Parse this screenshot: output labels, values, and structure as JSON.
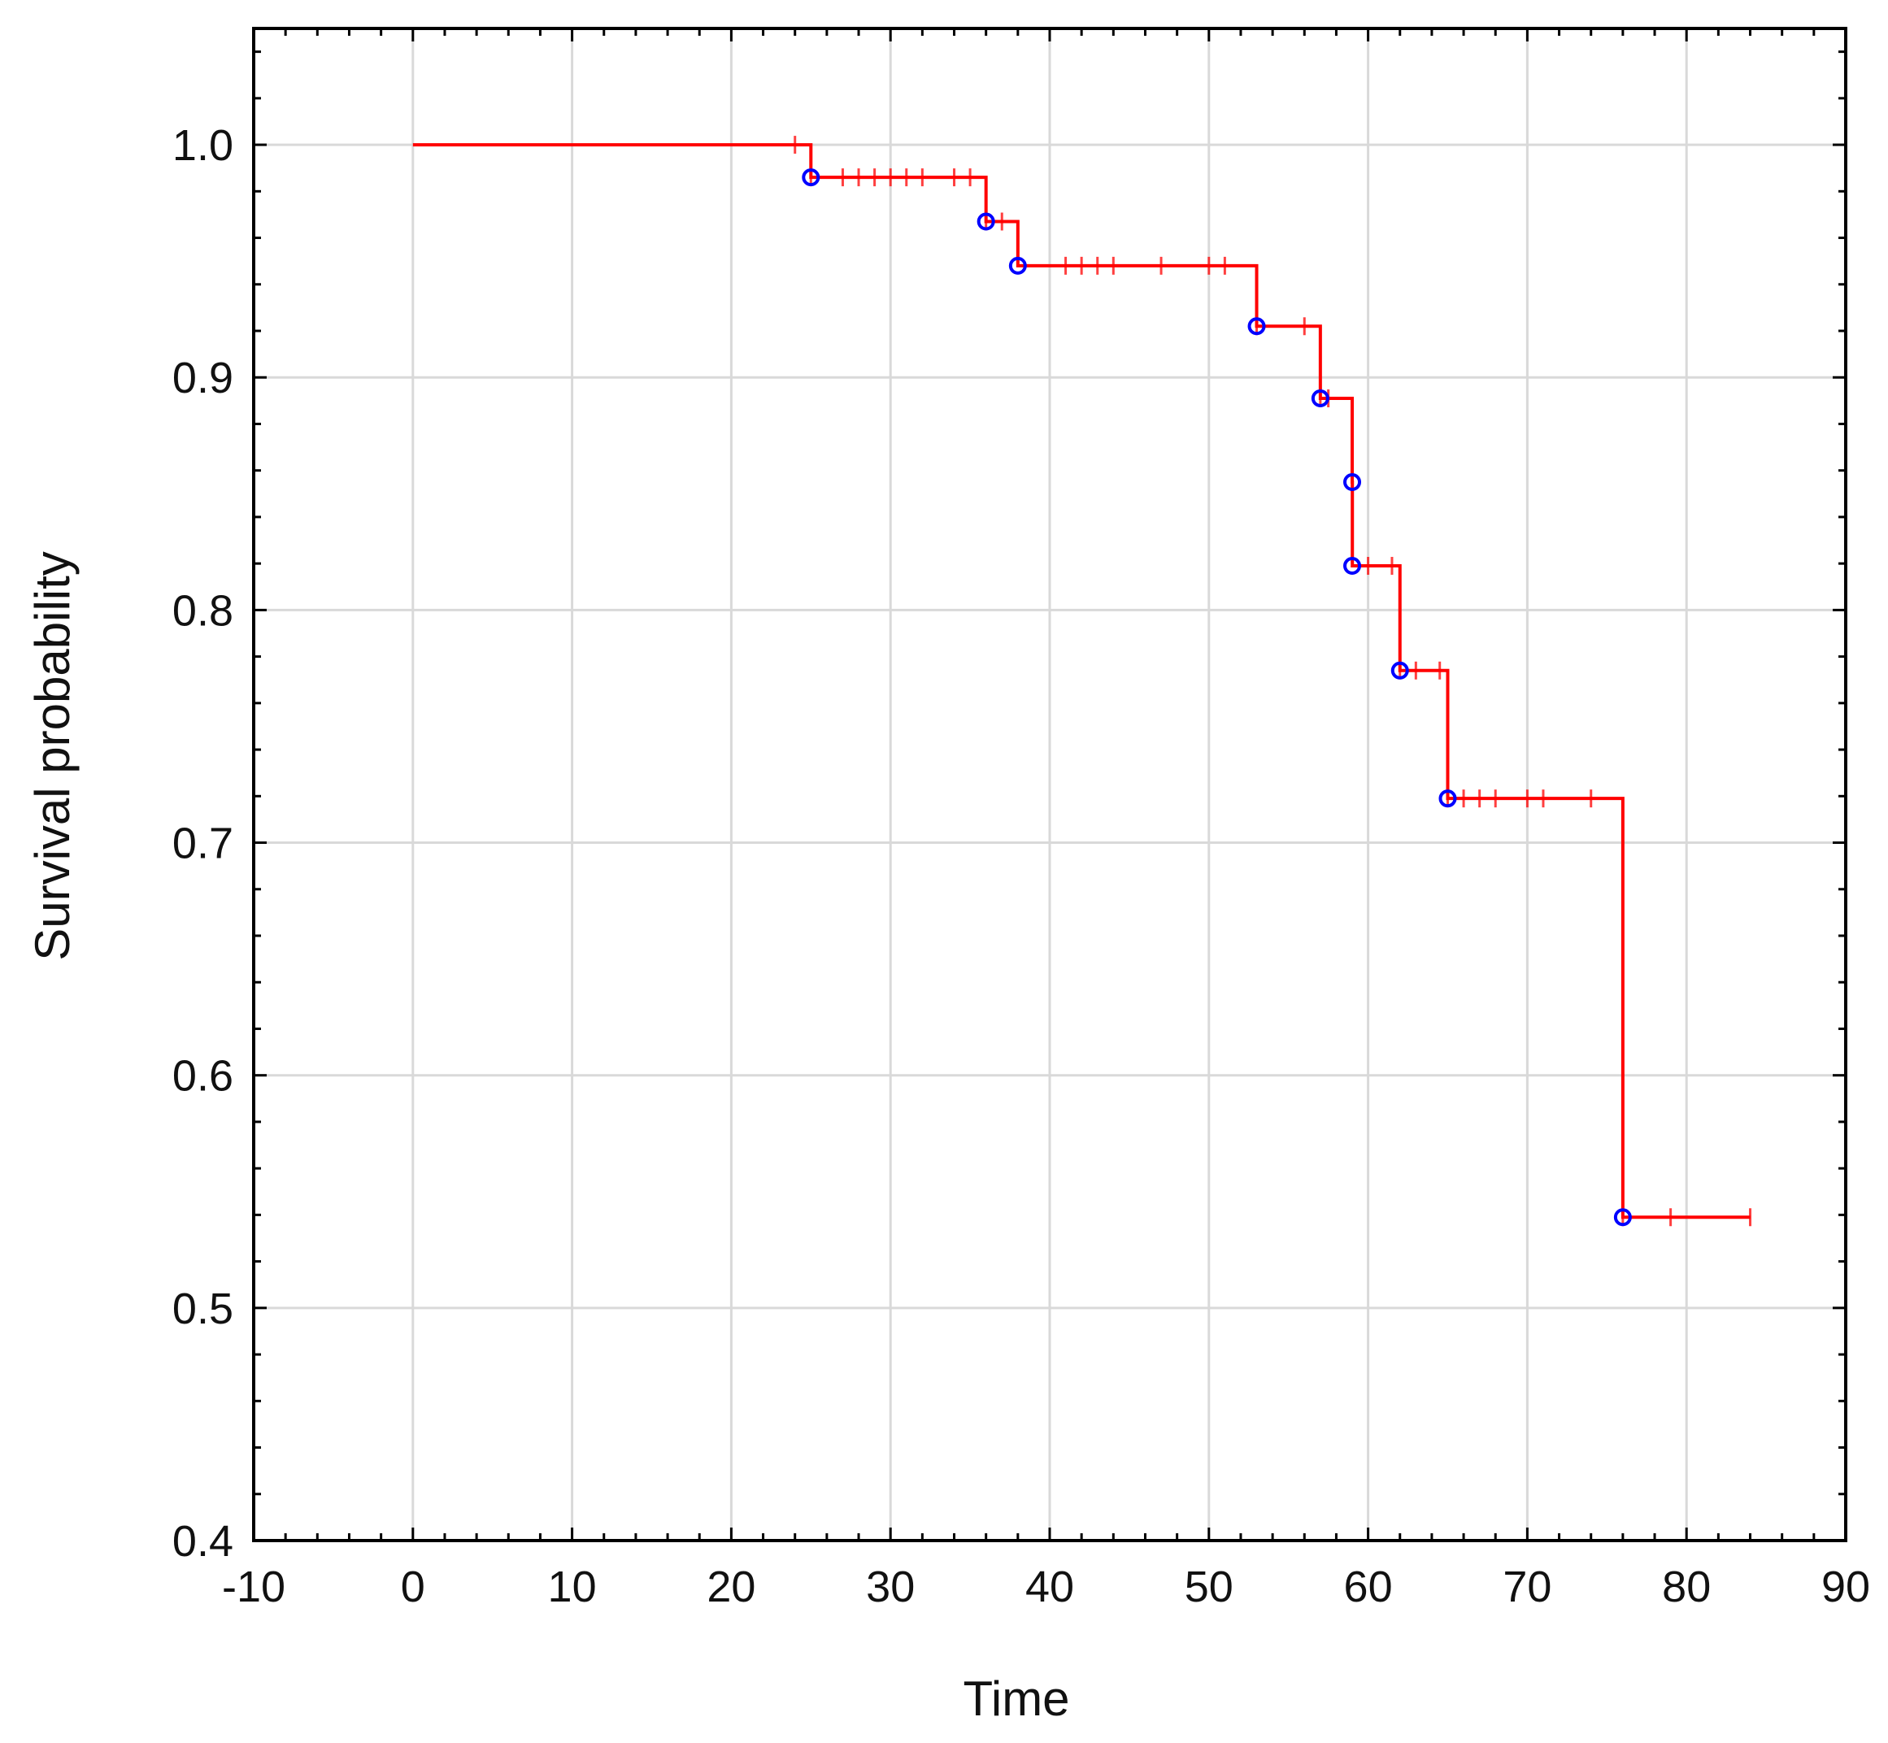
{
  "chart_data": {
    "type": "line",
    "xlabel": "Time",
    "ylabel": "Survival probability",
    "xlim": [
      -10,
      90
    ],
    "ylim": [
      0.4,
      1.05
    ],
    "xticks": [
      -10,
      0,
      10,
      20,
      30,
      40,
      50,
      60,
      70,
      80,
      90
    ],
    "xtick_labels": [
      "-10",
      "0",
      "10",
      "20",
      "30",
      "40",
      "50",
      "60",
      "70",
      "80",
      "90"
    ],
    "yticks": [
      0.4,
      0.5,
      0.6,
      0.7,
      0.8,
      0.9,
      1.0
    ],
    "ytick_labels": [
      "0.4",
      "0.5",
      "0.6",
      "0.7",
      "0.8",
      "0.9",
      "1.0"
    ],
    "grid": true,
    "colors": {
      "curve": "#ff0000",
      "event_marker": "#0000ff",
      "grid": "#d9d9d9",
      "axes": "#000000"
    },
    "series": [
      {
        "steps": [
          {
            "x": 0,
            "y": 1.0
          },
          {
            "x": 25,
            "y": 0.986
          },
          {
            "x": 36,
            "y": 0.967
          },
          {
            "x": 38,
            "y": 0.948
          },
          {
            "x": 53,
            "y": 0.922
          },
          {
            "x": 57,
            "y": 0.891
          },
          {
            "x": 59,
            "y": 0.855
          },
          {
            "x": 59.01,
            "y": 0.819
          },
          {
            "x": 62,
            "y": 0.774
          },
          {
            "x": 65,
            "y": 0.719
          },
          {
            "x": 76,
            "y": 0.539
          }
        ],
        "end_x": 84,
        "events": [
          {
            "x": 25,
            "y": 0.986
          },
          {
            "x": 36,
            "y": 0.967
          },
          {
            "x": 38,
            "y": 0.948
          },
          {
            "x": 53,
            "y": 0.922
          },
          {
            "x": 57,
            "y": 0.891
          },
          {
            "x": 59,
            "y": 0.855
          },
          {
            "x": 59,
            "y": 0.819
          },
          {
            "x": 62,
            "y": 0.774
          },
          {
            "x": 65,
            "y": 0.719
          },
          {
            "x": 76,
            "y": 0.539
          }
        ],
        "censored": [
          24,
          25,
          27,
          28,
          29,
          30,
          31,
          32,
          34,
          35,
          36,
          37,
          41,
          42,
          43,
          44,
          47,
          50,
          51,
          53,
          56,
          57,
          57.5,
          59,
          60,
          61.5,
          62,
          63,
          64.5,
          65,
          66,
          67,
          68,
          70,
          71,
          74,
          76,
          79,
          84
        ]
      }
    ]
  }
}
